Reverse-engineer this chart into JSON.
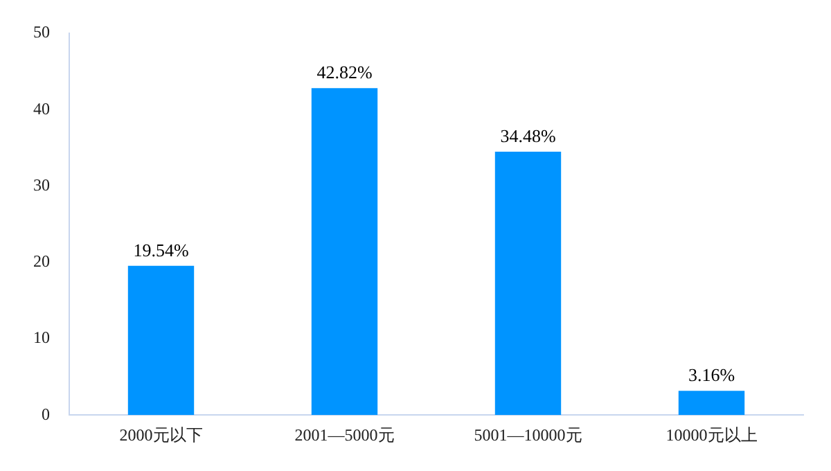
{
  "chart_data": {
    "type": "bar",
    "categories": [
      "2000元以下",
      "2001—5000元",
      "5001—10000元",
      "10000元以上"
    ],
    "values": [
      19.54,
      42.82,
      34.48,
      3.16
    ],
    "value_labels": [
      "19.54%",
      "42.82%",
      "34.48%",
      "3.16%"
    ],
    "color": "#0094ff",
    "ylim": [
      0,
      50
    ],
    "yticks": [
      0,
      10,
      20,
      30,
      40,
      50
    ],
    "grid": false,
    "legend": false
  }
}
